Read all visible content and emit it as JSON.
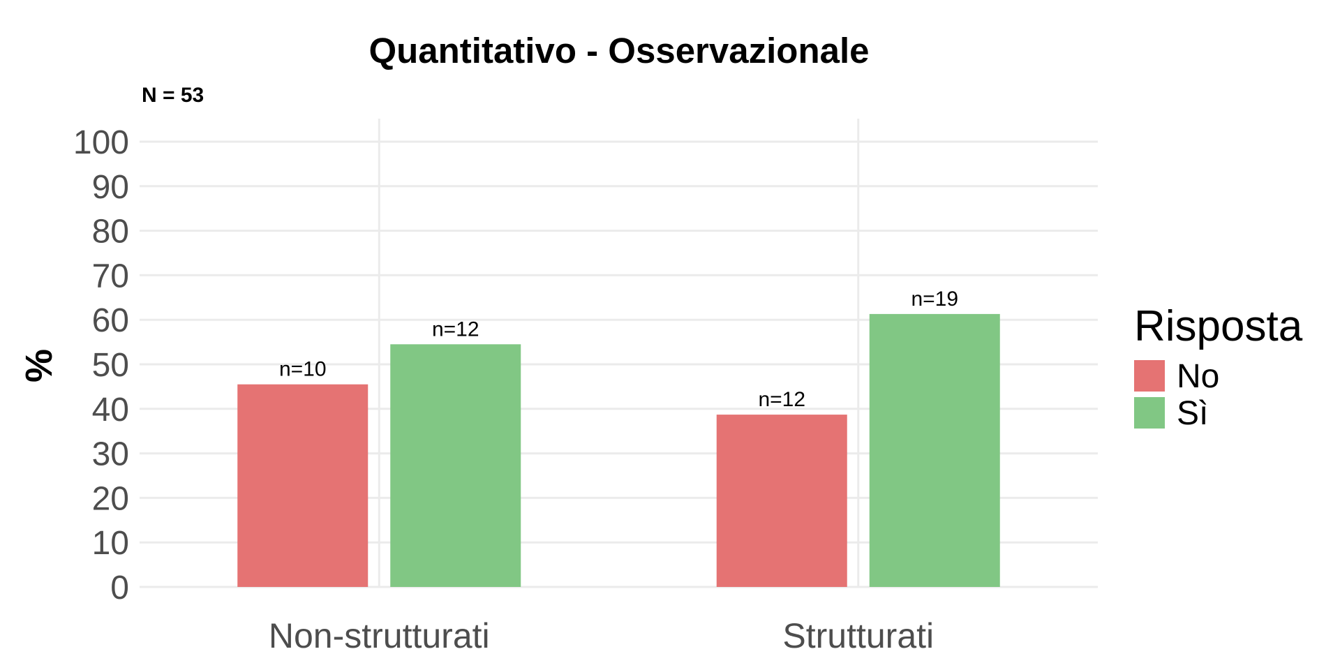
{
  "chart_data": {
    "type": "bar",
    "title": "Quantitativo - Osservazionale",
    "subtitle": "N = 53",
    "ylabel": "%",
    "xlabel": "",
    "ylim": [
      0,
      100
    ],
    "yticks": [
      "0",
      "10",
      "20",
      "30",
      "40",
      "50",
      "60",
      "70",
      "80",
      "90",
      "100"
    ],
    "categories": [
      "Non-strutturati",
      "Strutturati"
    ],
    "series": [
      {
        "name": "No",
        "color": "#e57373",
        "values": [
          45.5,
          38.7
        ],
        "labels": [
          "n=10",
          "n=12"
        ]
      },
      {
        "name": "Sì",
        "color": "#81c784",
        "values": [
          54.5,
          61.3
        ],
        "labels": [
          "n=12",
          "n=19"
        ]
      }
    ],
    "legend": {
      "title": "Risposta",
      "position": "right"
    },
    "grid": true
  }
}
